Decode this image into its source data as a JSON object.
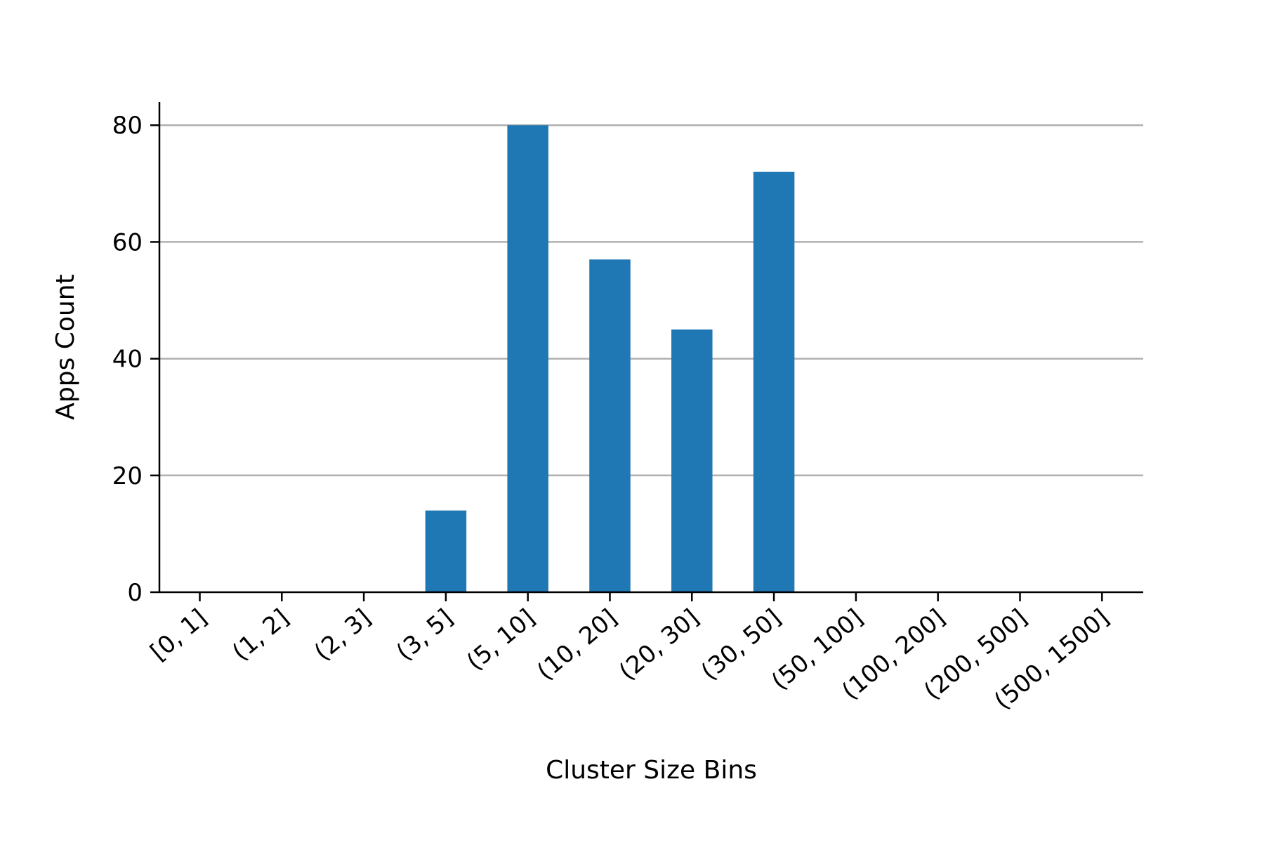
{
  "chart_data": {
    "type": "bar",
    "xlabel": "Cluster Size Bins",
    "ylabel": "Apps Count",
    "categories": [
      "[0, 1]",
      "(1, 2]",
      "(2, 3]",
      "(3, 5]",
      "(5, 10]",
      "(10, 20]",
      "(20, 30]",
      "(30, 50]",
      "(50, 100]",
      "(100, 200]",
      "(200, 500]",
      "(500, 1500]"
    ],
    "values": [
      0,
      0,
      0,
      14,
      80,
      57,
      45,
      72,
      0,
      0,
      0,
      0
    ],
    "ylim": [
      0,
      84
    ],
    "yticks": [
      0,
      20,
      40,
      60,
      80
    ],
    "grid": "horizontal",
    "colors": {
      "bar": "#1f77b4",
      "grid": "#b0b0b0",
      "axis": "#000000"
    }
  }
}
